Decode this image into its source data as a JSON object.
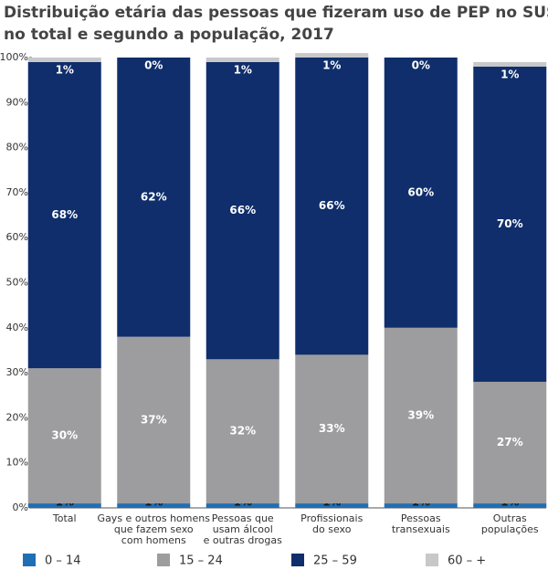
{
  "chart_data": {
    "type": "stacked-bar",
    "title": "Distribuição etária das pessoas que fizeram uso de PEP no SUS,",
    "subtitle": "no total e segundo a população, 2017",
    "categories": [
      "Total",
      "Gays e outros homens\nque fazem sexo\ncom homens",
      "Pessoas que\nusam álcool\ne outras drogas",
      "Profissionais\ndo sexo",
      "Pessoas\ntransexuais",
      "Outras\npopulações"
    ],
    "series": [
      {
        "name": "0 – 14",
        "color": "#1f6fb5",
        "values": [
          1,
          1,
          1,
          1,
          1,
          1
        ],
        "value_labels": [
          "1%",
          "1%",
          "1%",
          "1%",
          "1%",
          "1%"
        ]
      },
      {
        "name": "15 – 24",
        "color": "#9d9d9f",
        "values": [
          30,
          37,
          32,
          33,
          39,
          27
        ],
        "value_labels": [
          "30%",
          "37%",
          "32%",
          "33%",
          "39%",
          "27%"
        ]
      },
      {
        "name": "25 – 59",
        "color": "#0f2e6b",
        "values": [
          68,
          62,
          66,
          66,
          60,
          70
        ],
        "value_labels": [
          "68%",
          "62%",
          "66%",
          "66%",
          "60%",
          "70%"
        ]
      },
      {
        "name": "60 – +",
        "color": "#c8c8ca",
        "values": [
          1,
          0,
          1,
          1,
          0,
          1
        ],
        "value_labels": [
          "1%",
          "0%",
          "1%",
          "1%",
          "0%",
          "1%"
        ]
      }
    ],
    "ylim": [
      0,
      100
    ],
    "yticks": [
      {
        "value": 0,
        "label": "0%"
      },
      {
        "value": 10,
        "label": "10%"
      },
      {
        "value": 20,
        "label": "20%"
      },
      {
        "value": 30,
        "label": "30%"
      },
      {
        "value": 40,
        "label": "40%"
      },
      {
        "value": 50,
        "label": "50%"
      },
      {
        "value": 60,
        "label": "60%"
      },
      {
        "value": 70,
        "label": "70%"
      },
      {
        "value": 80,
        "label": "80%"
      },
      {
        "value": 90,
        "label": "90%"
      },
      {
        "value": 100,
        "label": "100%"
      }
    ],
    "grid": false
  }
}
